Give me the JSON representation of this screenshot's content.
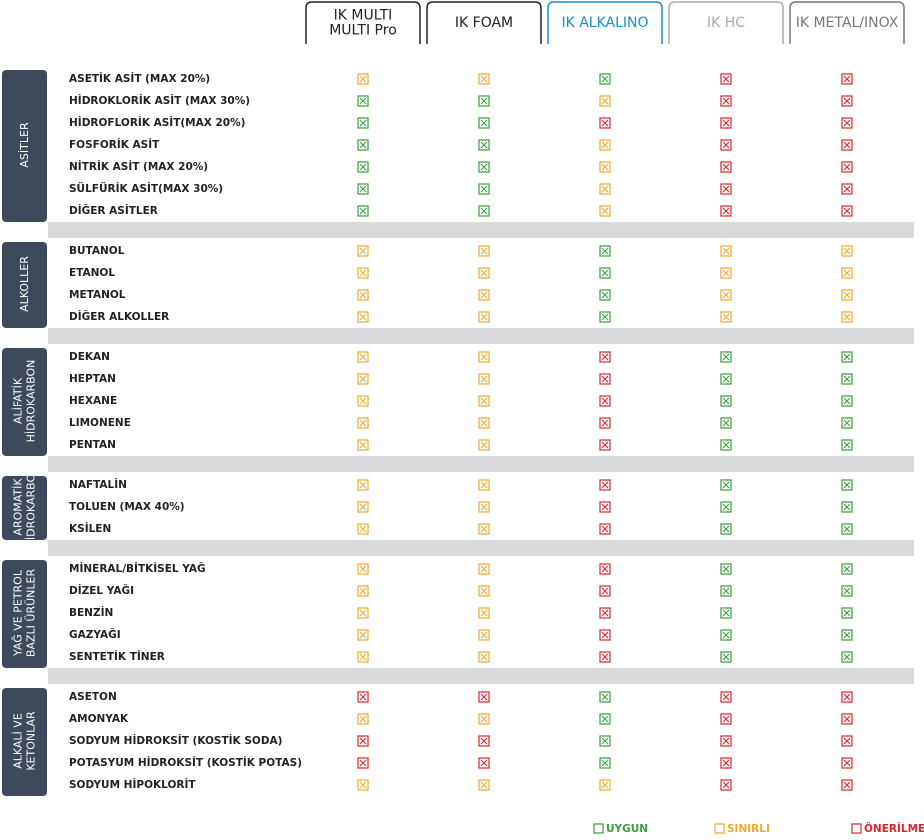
{
  "header": {
    "columns": [
      {
        "lines": [
          "IK MULTI",
          "MULTI Pro"
        ],
        "color": "#222222"
      },
      {
        "lines": [
          "IK FOAM"
        ],
        "color": "#222222"
      },
      {
        "lines": [
          "IK ALKALINO"
        ],
        "color": "#1a8ec9"
      },
      {
        "lines": [
          "IK HC"
        ],
        "color": "#aaaaaa"
      },
      {
        "lines": [
          "IK METAL/INOX"
        ],
        "color": "#777777"
      }
    ]
  },
  "legend": [
    {
      "label": "UYGUN",
      "color": "#3a9e3a"
    },
    {
      "label": "SINIRLI",
      "color": "#f0a830"
    },
    {
      "label": "ÖNERİLMEZ",
      "color": "#d9262c"
    }
  ],
  "groups": [
    {
      "label": [
        "ASİTLER"
      ],
      "rows": [
        {
          "name": "ASETİK ASİT (MAX 20%)",
          "cells": [
            1,
            1,
            0,
            2,
            2
          ]
        },
        {
          "name": "HİDROKLORİK ASİT (MAX 30%)",
          "cells": [
            0,
            0,
            1,
            2,
            2
          ]
        },
        {
          "name": "HİDROFLORİK ASİT(MAX 20%)",
          "cells": [
            0,
            0,
            2,
            2,
            2
          ]
        },
        {
          "name": "FOSFORİK ASİT",
          "cells": [
            0,
            0,
            1,
            2,
            2
          ]
        },
        {
          "name": "NİTRİK ASİT (MAX 20%)",
          "cells": [
            0,
            0,
            1,
            2,
            2
          ]
        },
        {
          "name": "SÜLFÜRİK ASİT(MAX 30%)",
          "cells": [
            0,
            0,
            1,
            2,
            2
          ]
        },
        {
          "name": "DİĞER ASİTLER",
          "cells": [
            0,
            0,
            1,
            2,
            2
          ]
        }
      ]
    },
    {
      "label": [
        "ALKOLLER"
      ],
      "rows": [
        {
          "name": "BUTANOL",
          "cells": [
            1,
            1,
            0,
            1,
            1
          ]
        },
        {
          "name": "ETANOL",
          "cells": [
            1,
            1,
            0,
            1,
            1
          ]
        },
        {
          "name": "METANOL",
          "cells": [
            1,
            1,
            0,
            1,
            1
          ]
        },
        {
          "name": "DİĞER ALKOLLER",
          "cells": [
            1,
            1,
            0,
            1,
            1
          ]
        }
      ]
    },
    {
      "label": [
        "ALİFATİK",
        "HİDROKARBON"
      ],
      "rows": [
        {
          "name": "DEKAN",
          "cells": [
            1,
            1,
            2,
            0,
            0
          ]
        },
        {
          "name": "HEPTAN",
          "cells": [
            1,
            1,
            2,
            0,
            0
          ]
        },
        {
          "name": "HEXANE",
          "cells": [
            1,
            1,
            2,
            0,
            0
          ]
        },
        {
          "name": "LIMONENE",
          "cells": [
            1,
            1,
            2,
            0,
            0
          ]
        },
        {
          "name": "PENTAN",
          "cells": [
            1,
            1,
            2,
            0,
            0
          ]
        }
      ]
    },
    {
      "label": [
        "AROMATİK",
        "HİDROKARBON"
      ],
      "rows": [
        {
          "name": "NAFTALİN",
          "cells": [
            1,
            1,
            2,
            0,
            0
          ]
        },
        {
          "name": "TOLUEN (MAX 40%)",
          "cells": [
            1,
            1,
            2,
            0,
            0
          ]
        },
        {
          "name": "KSİLEN",
          "cells": [
            1,
            1,
            2,
            0,
            0
          ]
        }
      ]
    },
    {
      "label": [
        "YAĞ VE PETROL",
        "BAZLI ÜRÜNLER"
      ],
      "rows": [
        {
          "name": "MİNERAL/BİTKİSEL YAĞ",
          "cells": [
            1,
            1,
            2,
            0,
            0
          ]
        },
        {
          "name": "DİZEL YAĞI",
          "cells": [
            1,
            1,
            2,
            0,
            0
          ]
        },
        {
          "name": "BENZİN",
          "cells": [
            1,
            1,
            2,
            0,
            0
          ]
        },
        {
          "name": "GAZYAĞI",
          "cells": [
            1,
            1,
            2,
            0,
            0
          ]
        },
        {
          "name": "SENTETİK TİNER",
          "cells": [
            1,
            1,
            2,
            0,
            0
          ]
        }
      ]
    },
    {
      "label": [
        "ALKALİ VE",
        "KETONLAR"
      ],
      "rows": [
        {
          "name": "ASETON",
          "cells": [
            2,
            2,
            0,
            2,
            2
          ]
        },
        {
          "name": "AMONYAK",
          "cells": [
            1,
            1,
            0,
            2,
            2
          ]
        },
        {
          "name": "SODYUM HİDROKSİT (KOSTİK SODA)",
          "cells": [
            2,
            2,
            0,
            2,
            2
          ]
        },
        {
          "name": "POTASYUM HİDROKSİT (KOSTİK POTAS)",
          "cells": [
            2,
            2,
            0,
            2,
            2
          ]
        },
        {
          "name": "SODYUM HİPOKLORİT",
          "cells": [
            1,
            1,
            1,
            2,
            2
          ]
        }
      ]
    }
  ]
}
